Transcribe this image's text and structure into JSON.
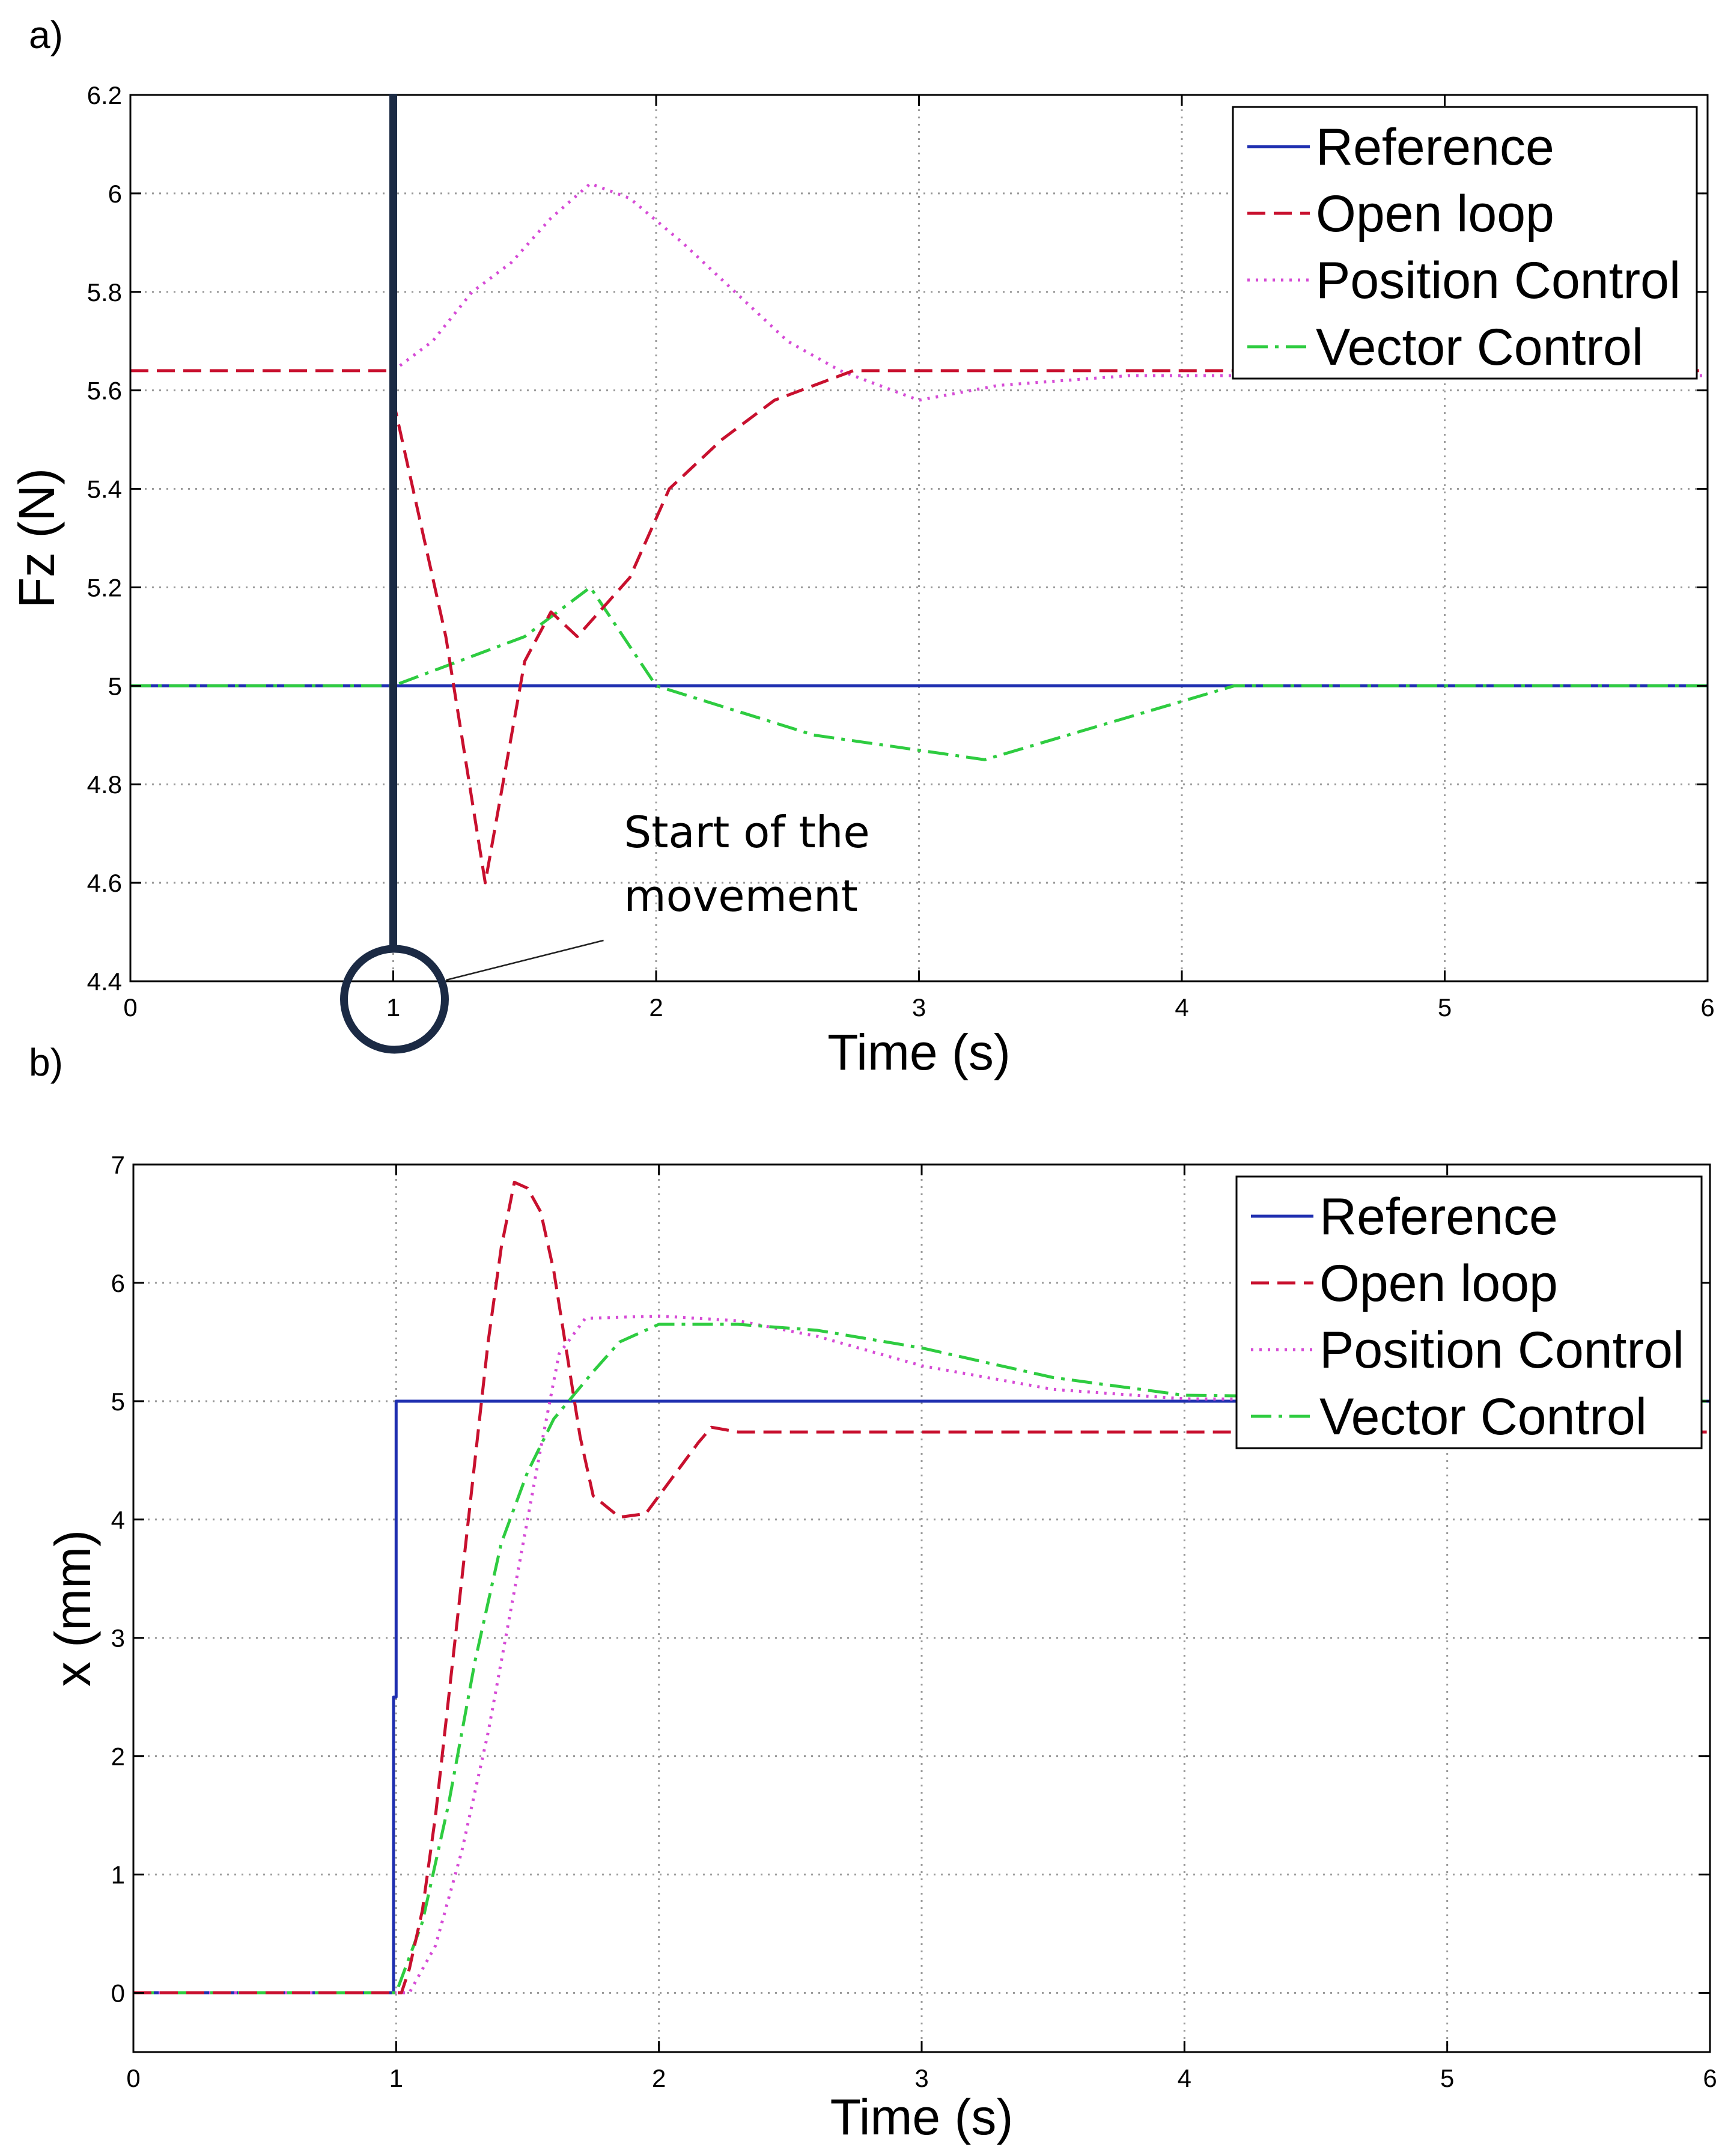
{
  "chart_data": [
    {
      "type": "line",
      "panel_label": "a)",
      "title": "",
      "xlabel": "Time (s)",
      "ylabel": "Fz (N)",
      "xlim": [
        0,
        6
      ],
      "ylim": [
        4.4,
        6.2
      ],
      "xticks": [
        "0",
        "1",
        "2",
        "3",
        "4",
        "5",
        "6"
      ],
      "yticks": [
        "4.4",
        "4.6",
        "4.8",
        "5",
        "5.2",
        "5.4",
        "5.6",
        "5.8",
        "6",
        "6.2"
      ],
      "grid": true,
      "legend_position": "top-right",
      "series": [
        {
          "name": "Reference",
          "color": "#1f2fb0",
          "dash": "solid",
          "points": [
            [
              0,
              5.0
            ],
            [
              6,
              5.0
            ]
          ]
        },
        {
          "name": "Open loop",
          "color": "#c8102e",
          "dash": "dashed",
          "points": [
            [
              0,
              5.64
            ],
            [
              1.0,
              5.64
            ],
            [
              1.0,
              5.58
            ],
            [
              1.2,
              5.1
            ],
            [
              1.35,
              4.6
            ],
            [
              1.5,
              5.05
            ],
            [
              1.6,
              5.15
            ],
            [
              1.7,
              5.1
            ],
            [
              1.9,
              5.22
            ],
            [
              2.05,
              5.4
            ],
            [
              2.25,
              5.5
            ],
            [
              2.45,
              5.58
            ],
            [
              2.75,
              5.64
            ],
            [
              3.5,
              5.64
            ],
            [
              6,
              5.64
            ]
          ]
        },
        {
          "name": "Position Control",
          "color": "#d64bd6",
          "dash": "dotted",
          "points": [
            [
              1.0,
              5.64
            ],
            [
              1.15,
              5.7
            ],
            [
              1.3,
              5.8
            ],
            [
              1.45,
              5.86
            ],
            [
              1.6,
              5.95
            ],
            [
              1.75,
              6.02
            ],
            [
              1.9,
              5.99
            ],
            [
              2.1,
              5.9
            ],
            [
              2.3,
              5.8
            ],
            [
              2.5,
              5.7
            ],
            [
              2.7,
              5.64
            ],
            [
              3.0,
              5.58
            ],
            [
              3.3,
              5.61
            ],
            [
              3.8,
              5.63
            ],
            [
              6,
              5.63
            ]
          ]
        },
        {
          "name": "Vector Control",
          "color": "#2ecc40",
          "dash": "dashdot",
          "points": [
            [
              0,
              5.0
            ],
            [
              1.0,
              5.0
            ],
            [
              1.5,
              5.1
            ],
            [
              1.75,
              5.2
            ],
            [
              2.0,
              5.0
            ],
            [
              2.6,
              4.9
            ],
            [
              3.25,
              4.85
            ],
            [
              4.2,
              5.0
            ],
            [
              6,
              5.0
            ]
          ]
        }
      ],
      "annotation": {
        "text_line1": "Start of the",
        "text_line2": "movement",
        "x": 1.0
      }
    },
    {
      "type": "line",
      "panel_label": "b)",
      "title": "",
      "xlabel": "Time (s)",
      "ylabel": "x (mm)",
      "xlim": [
        0,
        6
      ],
      "ylim": [
        -0.5,
        7
      ],
      "xticks": [
        "0",
        "1",
        "2",
        "3",
        "4",
        "5",
        "6"
      ],
      "yticks": [
        "0",
        "1",
        "2",
        "3",
        "4",
        "5",
        "6",
        "7"
      ],
      "grid": true,
      "legend_position": "top-right",
      "series": [
        {
          "name": "Reference",
          "color": "#1f2fb0",
          "dash": "solid",
          "points": [
            [
              0,
              0
            ],
            [
              0.99,
              0
            ],
            [
              0.99,
              2.5
            ],
            [
              1.0,
              2.5
            ],
            [
              1.0,
              5.0
            ],
            [
              6,
              5.0
            ]
          ]
        },
        {
          "name": "Open loop",
          "color": "#c8102e",
          "dash": "dashed",
          "points": [
            [
              0,
              0
            ],
            [
              1.02,
              0
            ],
            [
              1.05,
              0.2
            ],
            [
              1.1,
              0.7
            ],
            [
              1.15,
              1.5
            ],
            [
              1.2,
              2.5
            ],
            [
              1.25,
              3.5
            ],
            [
              1.3,
              4.5
            ],
            [
              1.35,
              5.5
            ],
            [
              1.4,
              6.3
            ],
            [
              1.45,
              6.85
            ],
            [
              1.5,
              6.8
            ],
            [
              1.55,
              6.6
            ],
            [
              1.6,
              6.1
            ],
            [
              1.65,
              5.4
            ],
            [
              1.7,
              4.7
            ],
            [
              1.75,
              4.2
            ],
            [
              1.85,
              4.02
            ],
            [
              1.95,
              4.05
            ],
            [
              2.05,
              4.35
            ],
            [
              2.15,
              4.65
            ],
            [
              2.2,
              4.78
            ],
            [
              2.3,
              4.74
            ],
            [
              6,
              4.74
            ]
          ]
        },
        {
          "name": "Position Control",
          "color": "#d64bd6",
          "dash": "dotted",
          "points": [
            [
              0,
              0
            ],
            [
              1.05,
              0
            ],
            [
              1.15,
              0.4
            ],
            [
              1.25,
              1.2
            ],
            [
              1.35,
              2.2
            ],
            [
              1.45,
              3.4
            ],
            [
              1.55,
              4.6
            ],
            [
              1.62,
              5.4
            ],
            [
              1.72,
              5.7
            ],
            [
              2.0,
              5.72
            ],
            [
              2.3,
              5.68
            ],
            [
              2.6,
              5.55
            ],
            [
              3.0,
              5.3
            ],
            [
              3.5,
              5.1
            ],
            [
              4.0,
              5.02
            ],
            [
              6,
              5.0
            ]
          ]
        },
        {
          "name": "Vector Control",
          "color": "#2ecc40",
          "dash": "dashdot",
          "points": [
            [
              0,
              0
            ],
            [
              1.0,
              0
            ],
            [
              1.1,
              0.6
            ],
            [
              1.2,
              1.6
            ],
            [
              1.3,
              2.8
            ],
            [
              1.4,
              3.8
            ],
            [
              1.5,
              4.4
            ],
            [
              1.6,
              4.85
            ],
            [
              1.75,
              5.25
            ],
            [
              1.85,
              5.5
            ],
            [
              2.0,
              5.65
            ],
            [
              2.3,
              5.65
            ],
            [
              2.6,
              5.6
            ],
            [
              3.0,
              5.45
            ],
            [
              3.5,
              5.2
            ],
            [
              4.0,
              5.05
            ],
            [
              6,
              5.0
            ]
          ]
        }
      ]
    }
  ]
}
